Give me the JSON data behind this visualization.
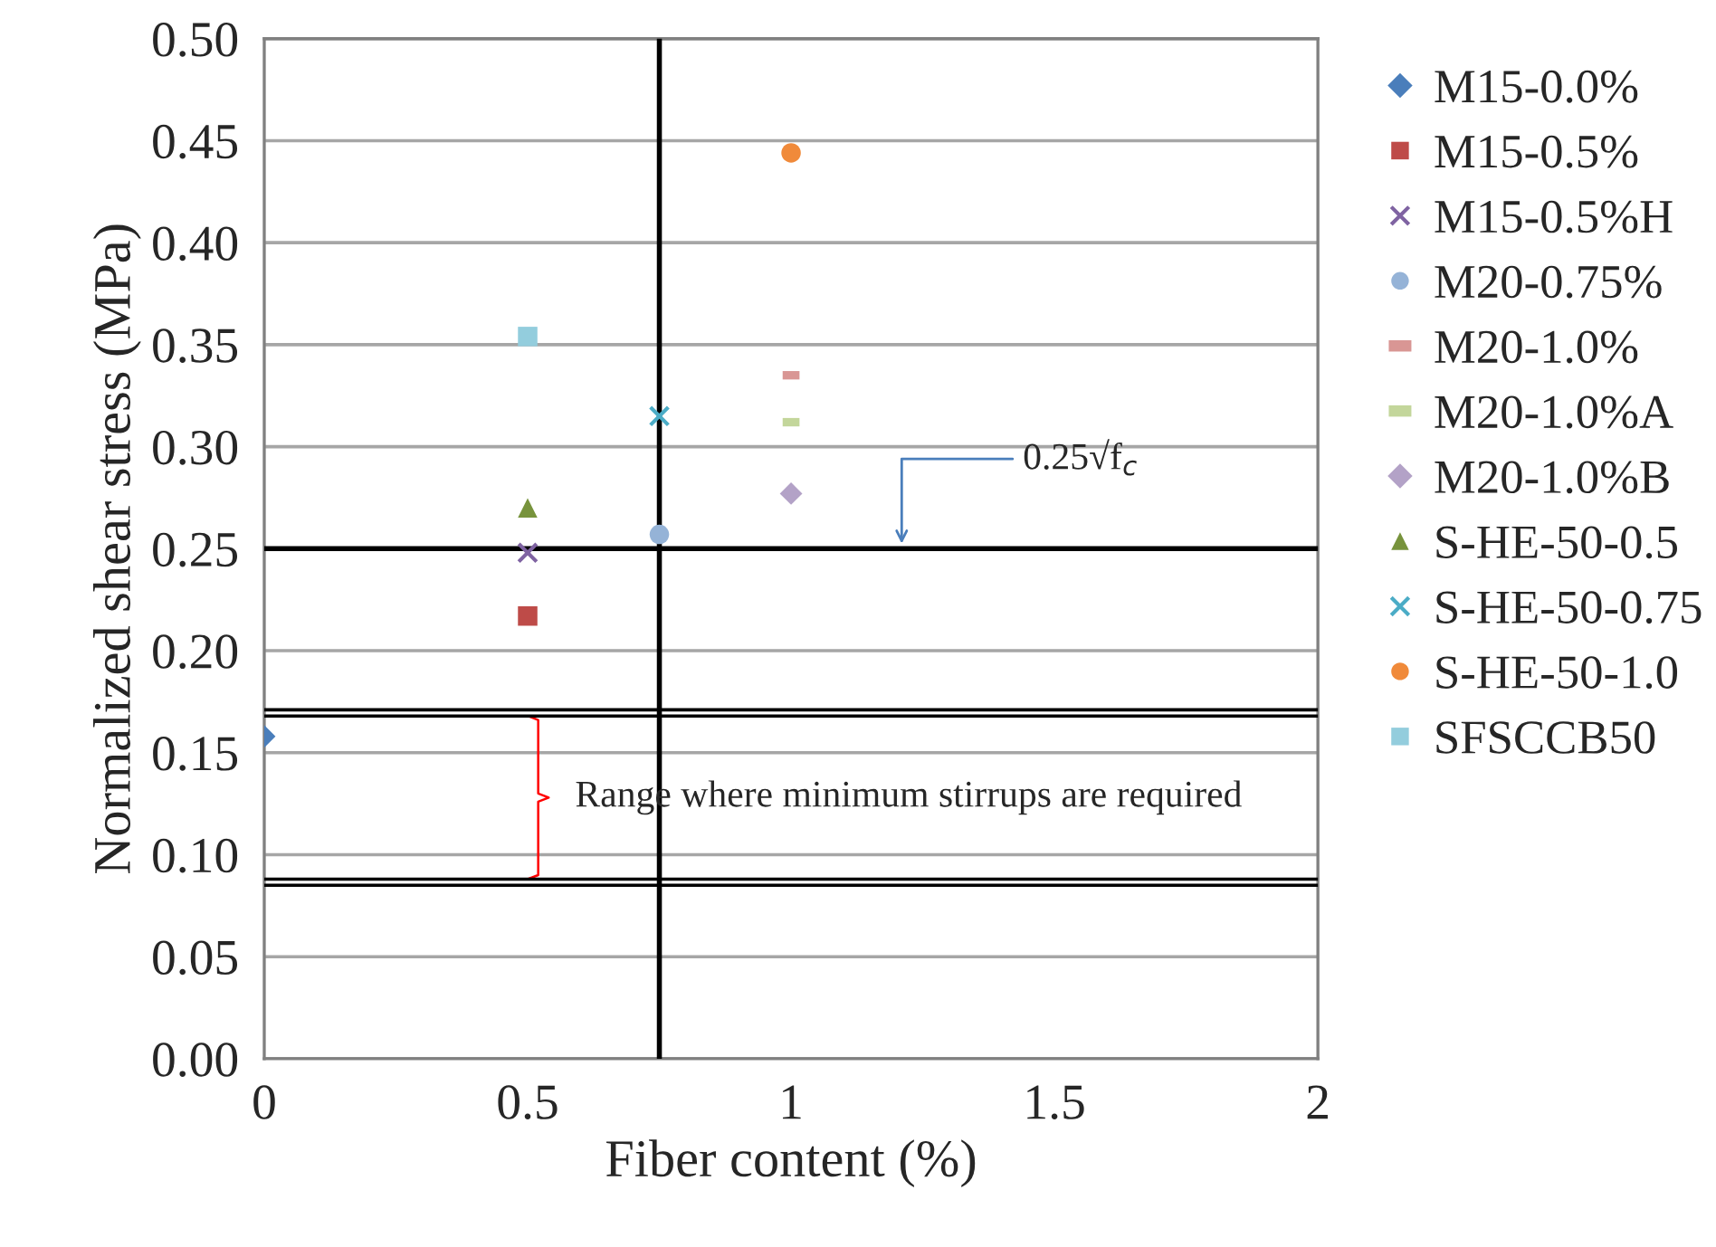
{
  "chart_data": {
    "type": "scatter",
    "xlabel": "Fiber content (%)",
    "ylabel": "Normalized shear stress (MPa)",
    "xlim": [
      0,
      2
    ],
    "xticks": [
      0,
      0.5,
      1,
      1.5,
      2
    ],
    "ylim": [
      0,
      0.5
    ],
    "yticks": [
      {
        "value": 0,
        "label": "0.00"
      },
      {
        "value": 0.05,
        "label": "0.05"
      },
      {
        "value": 0.1,
        "label": "0.10"
      },
      {
        "value": 0.15,
        "label": "0.15"
      },
      {
        "value": 0.2,
        "label": "0.20"
      },
      {
        "value": 0.25,
        "label": "0.25"
      },
      {
        "value": 0.3,
        "label": "0.30"
      },
      {
        "value": 0.35,
        "label": "0.35"
      },
      {
        "value": 0.4,
        "label": "0.40"
      },
      {
        "value": 0.45,
        "label": "0.45"
      },
      {
        "value": 0.5,
        "label": "0.50"
      }
    ],
    "grid": "y",
    "legend": "right",
    "series": [
      {
        "name": "M15-0.0%",
        "color": "#4a7ebb",
        "marker": "diamond",
        "x": [
          0
        ],
        "values": [
          0.158
        ]
      },
      {
        "name": "M15-0.5%",
        "color": "#be4b48",
        "marker": "square",
        "x": [
          0.5
        ],
        "values": [
          0.217
        ]
      },
      {
        "name": "M15-0.5%H",
        "color": "#7f63a2",
        "marker": "cross",
        "x": [
          0.5
        ],
        "values": [
          0.248
        ]
      },
      {
        "name": "M20-0.75%",
        "color": "#95b3d7",
        "marker": "circle",
        "x": [
          0.75
        ],
        "values": [
          0.257
        ]
      },
      {
        "name": "M20-1.0%",
        "color": "#d99694",
        "x": [
          1
        ],
        "values": [
          0.335
        ]
      },
      {
        "name": "M20-1.0%A",
        "color": "#c3d69b",
        "x": [
          1
        ],
        "values": [
          0.312
        ]
      },
      {
        "name": "M20-1.0%B",
        "color": "#b3a2c7",
        "marker": "diamond",
        "x": [
          1
        ],
        "values": [
          0.277
        ]
      },
      {
        "name": "S-HE-50-0.5",
        "color": "#77933c",
        "marker": "triangle",
        "x": [
          0.5
        ],
        "values": [
          0.27
        ]
      },
      {
        "name": "S-HE-50-0.75",
        "color": "#4bacc6",
        "marker": "cross",
        "x": [
          0.75
        ],
        "values": [
          0.315
        ]
      },
      {
        "name": "S-HE-50-1.0",
        "color": "#f08a3a",
        "marker": "circle",
        "x": [
          1
        ],
        "values": [
          0.444
        ]
      },
      {
        "name": "SFSCCB50",
        "color": "#93cddd",
        "marker": "square",
        "x": [
          0.5
        ],
        "values": [
          0.354
        ]
      }
    ],
    "ref_lines": [
      {
        "axis": "y",
        "value": 0.25,
        "label": "0.25√f$_{c}$",
        "color": "#000000"
      },
      {
        "axis": "x",
        "value": 0.75,
        "color": "#000000"
      },
      {
        "axis": "y",
        "value": 0.168,
        "color": "#000000"
      },
      {
        "axis": "y",
        "value": 0.171,
        "color": "#000000"
      },
      {
        "axis": "y",
        "value": 0.085,
        "color": "#000000"
      },
      {
        "axis": "y",
        "value": 0.088,
        "color": "#000000"
      }
    ],
    "annotations": [
      "Range where minimum stirrups are required"
    ]
  }
}
